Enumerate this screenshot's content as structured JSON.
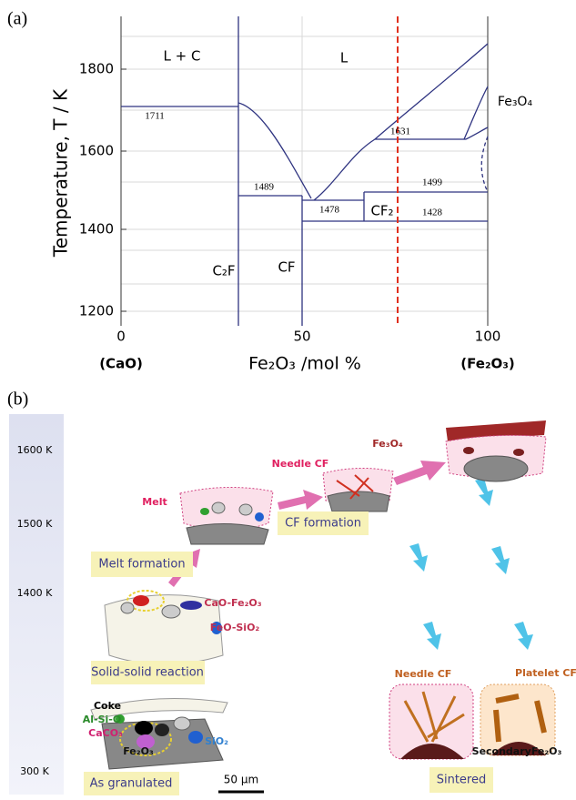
{
  "panel_a": {
    "label": "(a)",
    "y_axis_title": "Temperature, T / K",
    "y_tick_labels": [
      "1800",
      "1600",
      "1400",
      "1200"
    ],
    "x_tick_labels": [
      "0",
      "50",
      "100"
    ],
    "x_axis_title": "Fe₂O₃ /mol %",
    "x_end_labels": [
      "(CaO)",
      "(Fe₂O₃)"
    ],
    "region_labels": [
      "L + C",
      "L",
      "C₂F",
      "CF",
      "CF₂",
      "Fe₃O₄"
    ],
    "temperature_labels": [
      "1711",
      "1631",
      "1489",
      "1478",
      "1499",
      "1428"
    ]
  },
  "panel_b": {
    "label": "(b)",
    "temperature_scale": [
      "1600 K",
      "1500 K",
      "1400 K",
      "300 K"
    ],
    "steps": [
      "As granulated",
      "Solid-solid reaction",
      "Melt formation",
      "CF formation",
      "Sintered"
    ],
    "annotations": [
      "Coke",
      "Al-Si-O",
      "CaCO₃",
      "Fe₂O₃",
      "SiO₂",
      "CaO-Fe₂O₃",
      "FeO-SiO₂",
      "Melt",
      "Needle CF",
      "Fe₃O₄",
      "Needle CF",
      "Platelet CF",
      "SecondaryFe₂O₃"
    ],
    "scale_bar": "50 μm"
  }
}
